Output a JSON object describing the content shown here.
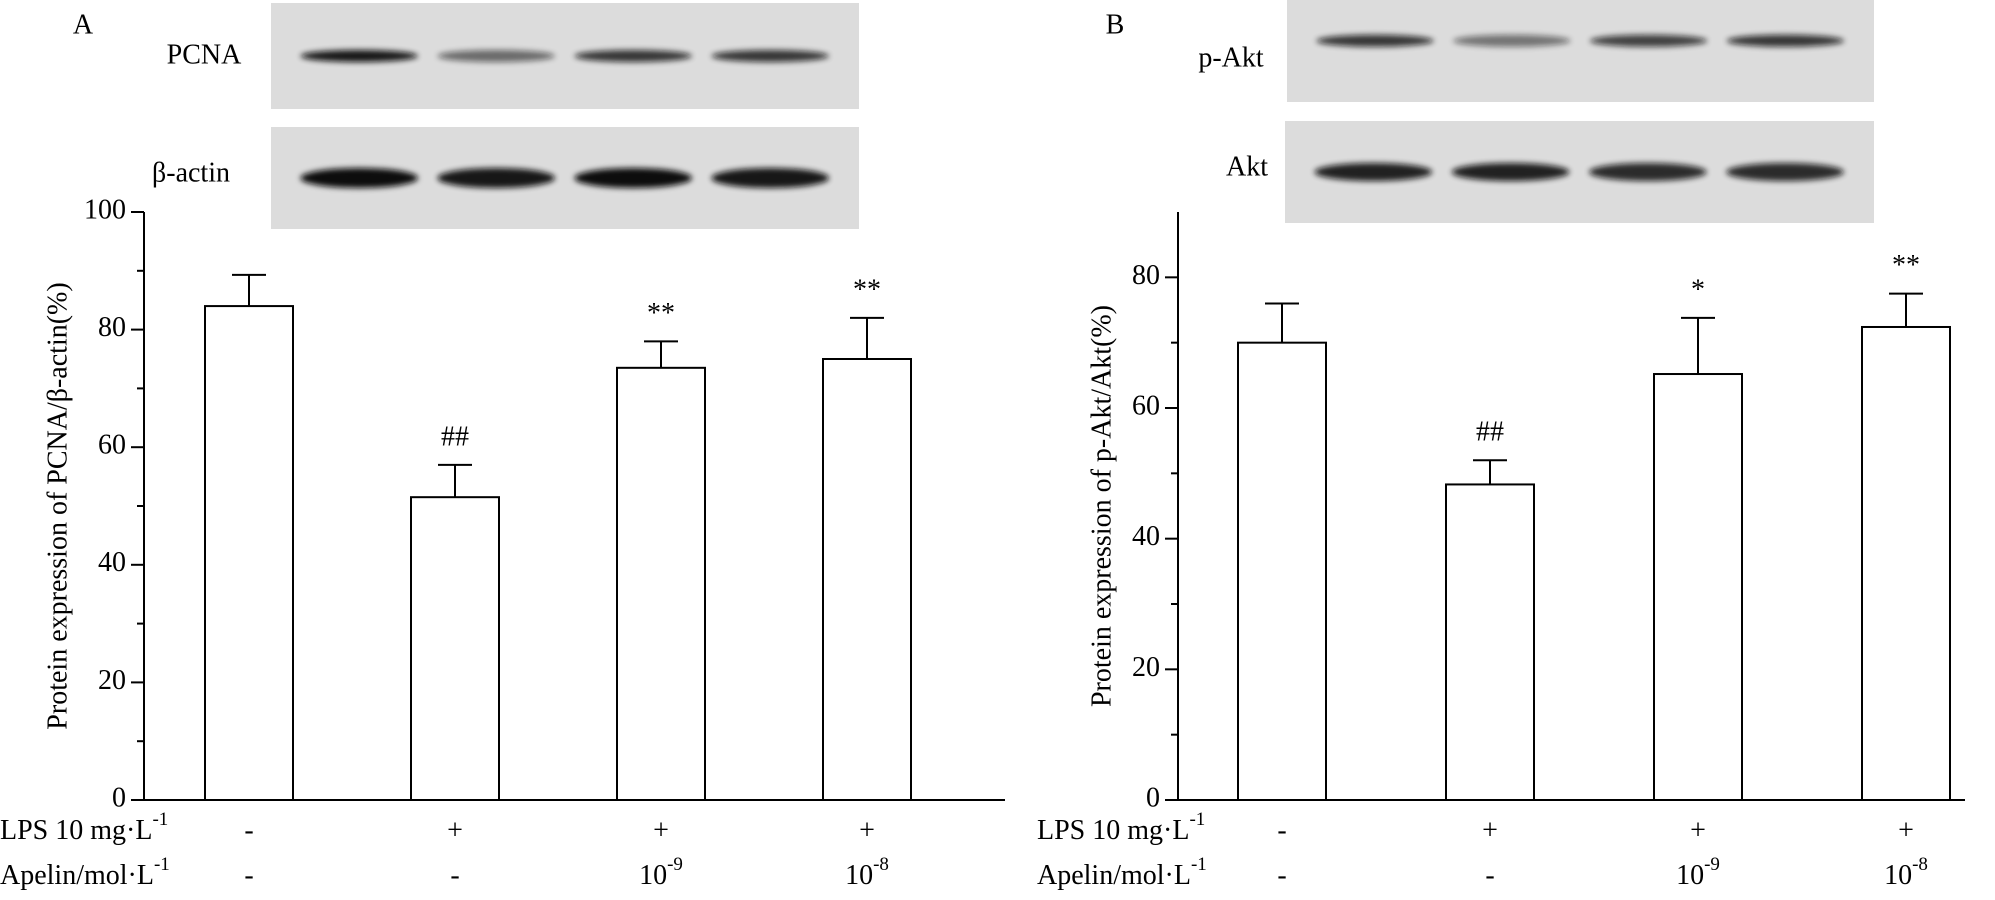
{
  "chart_data": [
    {
      "type": "bar",
      "panel": "A",
      "blots": [
        "PCNA",
        "β-actin"
      ],
      "ylabel": "Protein expression of PCNA/β-actin(%)",
      "ylim": [
        0,
        100
      ],
      "yticks": [
        0,
        20,
        40,
        60,
        80,
        100
      ],
      "minor_yticks": [
        10,
        30,
        50,
        70,
        90
      ],
      "values": [
        84,
        51.5,
        73.5,
        75
      ],
      "errors": [
        5.3,
        5.5,
        4.5,
        7
      ],
      "annotations": [
        null,
        "##",
        "**",
        "**"
      ],
      "rows": [
        {
          "label": {
            "text": "LPS 10 mg·L",
            "sup": "-1"
          },
          "cells": [
            "-",
            "+",
            "+",
            "+"
          ]
        },
        {
          "label": {
            "text": "Apelin/mol·L",
            "sup": "-1"
          },
          "cells": [
            "-",
            "-",
            {
              "text": "10",
              "sup": "-9"
            },
            {
              "text": "10",
              "sup": "-8"
            }
          ]
        }
      ]
    },
    {
      "type": "bar",
      "panel": "B",
      "blots": [
        "p-Akt",
        "Akt"
      ],
      "ylabel": "Protein expression of p-Akt/Akt(%)",
      "ylim": [
        0,
        90
      ],
      "yticks": [
        0,
        20,
        40,
        60,
        80
      ],
      "minor_yticks": [
        10,
        30,
        50,
        70
      ],
      "values": [
        70,
        48.3,
        65.2,
        72.4
      ],
      "errors": [
        6,
        3.7,
        8.6,
        5.1
      ],
      "annotations": [
        null,
        "##",
        "*",
        "**"
      ],
      "rows": [
        {
          "label": {
            "text": "LPS 10 mg·L",
            "sup": "-1"
          },
          "cells": [
            "-",
            "+",
            "+",
            "+"
          ]
        },
        {
          "label": {
            "text": "Apelin/mol·L",
            "sup": "-1"
          },
          "cells": [
            "-",
            "-",
            {
              "text": "10",
              "sup": "-9"
            },
            {
              "text": "10",
              "sup": "-8"
            }
          ]
        }
      ]
    }
  ]
}
